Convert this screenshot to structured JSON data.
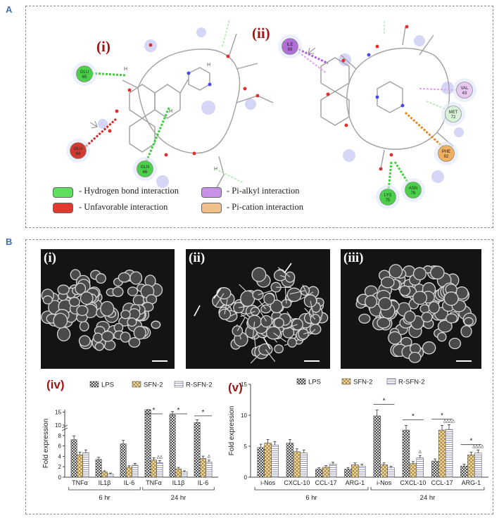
{
  "panels": {
    "a_letter": "A",
    "b_letter": "B"
  },
  "docking": {
    "label_i": "(i)",
    "label_ii": "(ii)",
    "residues_i": [
      {
        "name": "GLU",
        "num": "65",
        "color": "#4cd04c"
      },
      {
        "name": "GLU",
        "num": "64",
        "color": "#d03a30"
      },
      {
        "name": "GLN",
        "num": "66",
        "color": "#4cd04c"
      }
    ],
    "residues_ii": [
      {
        "name": "ILE",
        "num": "89",
        "color": "#b06fd6"
      },
      {
        "name": "VAL",
        "num": "43",
        "color": "#e6c8f0"
      },
      {
        "name": "MET",
        "num": "72",
        "color": "#d8f2d8"
      },
      {
        "name": "PHE",
        "num": "92",
        "color": "#f0b060"
      },
      {
        "name": "ASN",
        "num": "76",
        "color": "#4cd04c"
      },
      {
        "name": "LYS",
        "num": "75",
        "color": "#4cd04c"
      }
    ],
    "legend": [
      {
        "label": "- Hydrogen bond interaction",
        "color": "#5ee05e"
      },
      {
        "label": "- Unfavorable   interaction",
        "color": "#e03a30"
      },
      {
        "label": "- Pi-alkyl interaction",
        "color": "#c890e6"
      },
      {
        "label": "- Pi-cation interaction",
        "color": "#f0c088"
      }
    ]
  },
  "micrographs": {
    "labels": [
      "(i)",
      "(ii)",
      "(iii)"
    ]
  },
  "chart_data": [
    {
      "type": "bar",
      "panel_label": "(iv)",
      "ylabel": "Fold expression",
      "legend": [
        "LPS",
        "SFN-2",
        "R-SFN-2"
      ],
      "groups": [
        "6 hr",
        "24 hr"
      ],
      "categories": [
        "TNFα",
        "IL1β",
        "IL-6",
        "TNFα",
        "IL1β",
        "IL-6"
      ],
      "yticks": [
        "0",
        "2",
        "4",
        "6",
        "8",
        "10",
        "15"
      ],
      "ylim": [
        0,
        16
      ],
      "axis_break": true,
      "series": [
        {
          "name": "LPS",
          "values": [
            7.2,
            3.4,
            6.4,
            16.0,
            14.0,
            11.0
          ]
        },
        {
          "name": "SFN-2",
          "values": [
            4.3,
            1.0,
            1.9,
            3.3,
            1.6,
            3.6
          ]
        },
        {
          "name": "R-SFN-2",
          "values": [
            4.7,
            0.6,
            2.3,
            2.8,
            1.0,
            2.9
          ]
        }
      ],
      "significance": [
        "*",
        "*",
        "*"
      ],
      "annotations": [
        "ΔΔ",
        "Δ"
      ]
    },
    {
      "type": "bar",
      "panel_label": "(v)",
      "ylabel": "Fold expression",
      "legend": [
        "LPS",
        "SFN-2",
        "R-SFN-2"
      ],
      "groups": [
        "6 hr",
        "24 hr"
      ],
      "categories": [
        "i-Nos",
        "CXCL-10",
        "CCL-17",
        "ARG-1",
        "i-Nos",
        "CXCL-10",
        "CCL-17",
        "ARG-1"
      ],
      "yticks": [
        "0",
        "5",
        "10",
        "15"
      ],
      "ylim": [
        0,
        15
      ],
      "series": [
        {
          "name": "LPS",
          "values": [
            4.8,
            5.5,
            1.3,
            1.3,
            9.9,
            7.6,
            2.6,
            1.8
          ]
        },
        {
          "name": "SFN-2",
          "values": [
            5.5,
            4.1,
            1.6,
            2.0,
            2.0,
            2.2,
            7.6,
            3.6
          ]
        },
        {
          "name": "R-SFN-2",
          "values": [
            5.2,
            3.9,
            2.1,
            1.8,
            1.5,
            3.1,
            7.7,
            3.9
          ]
        }
      ],
      "significance": [
        "*",
        "*",
        "*",
        "*"
      ],
      "annotations": [
        "Δ",
        "ΔΔΔΔ",
        "ΔΔΔΔ"
      ]
    }
  ]
}
